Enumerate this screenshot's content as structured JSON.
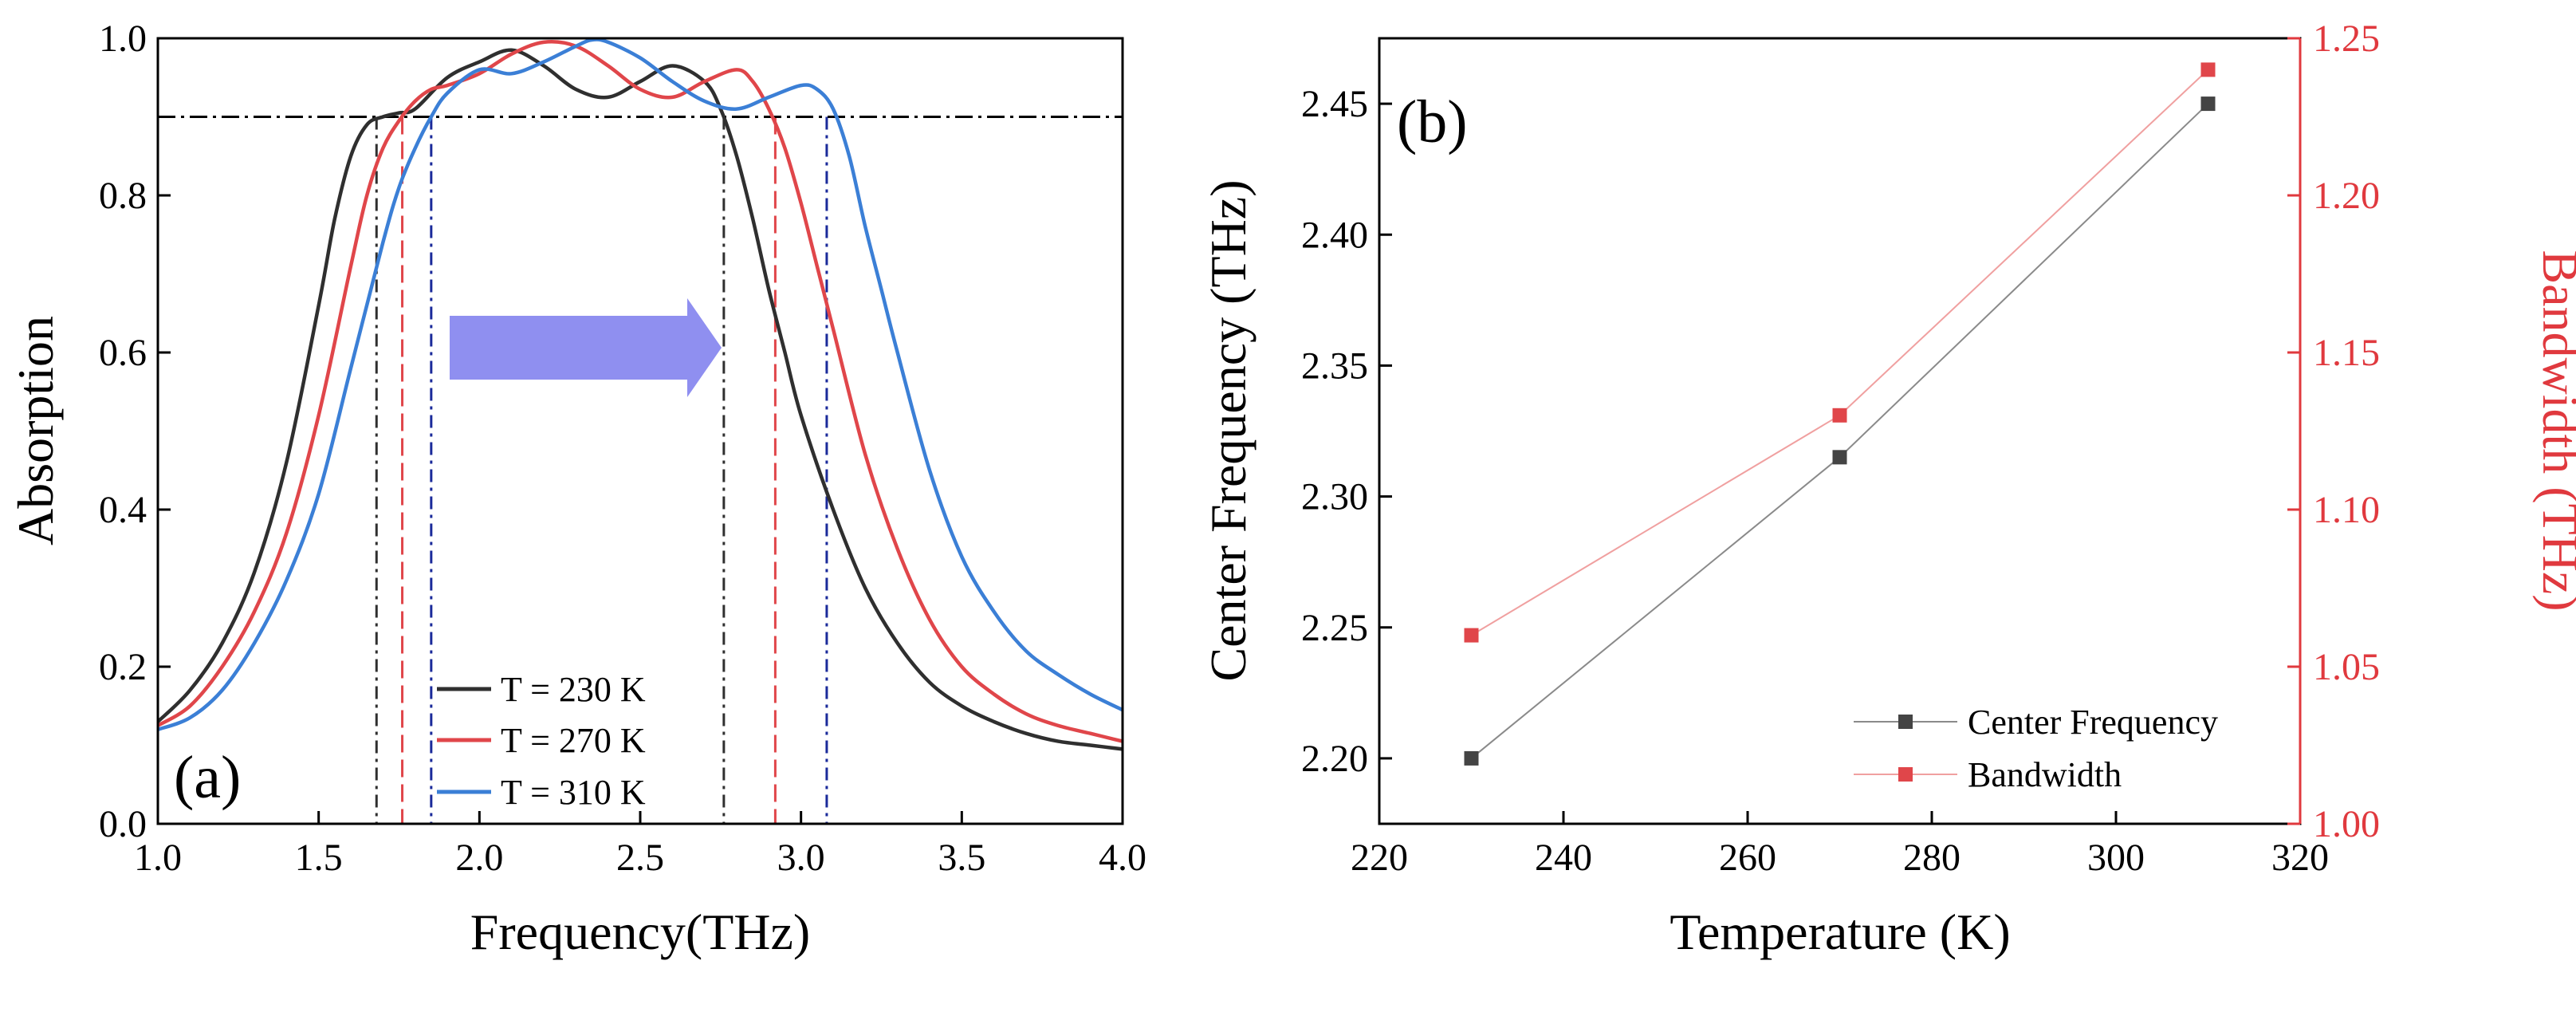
{
  "colors": {
    "black": "#2f2f2f",
    "red": "#e0464a",
    "blue": "#3b7fd6",
    "navy": "#1a2a9a",
    "arrow": "#8f8ff0",
    "bandwidth_axis": "#e0393e",
    "center_marker": "#444444",
    "grey_line": "#8a8a8a",
    "pink_line": "#f0a0a0"
  },
  "chart_data": [
    {
      "panel_label": "(a)",
      "type": "line",
      "xlabel": "Frequency(THz)",
      "ylabel": "Absorption",
      "xlim": [
        1.0,
        4.0
      ],
      "ylim": [
        0.0,
        1.0
      ],
      "xticks": [
        "1.0",
        "1.5",
        "2.0",
        "2.5",
        "3.0",
        "3.5",
        "4.0"
      ],
      "yticks": [
        "0.0",
        "0.2",
        "0.4",
        "0.6",
        "0.8",
        "1.0"
      ],
      "threshold": 0.9,
      "annotation": "arrow pointing right (band shifts to higher frequency with temperature)",
      "legend": [
        "T = 230 K",
        "T = 270 K",
        "T = 310 K"
      ],
      "series": [
        {
          "name": "T = 230 K",
          "color_key": "black",
          "band_edges": [
            1.68,
            2.76
          ],
          "x": [
            1.0,
            1.1,
            1.2,
            1.3,
            1.4,
            1.5,
            1.55,
            1.6,
            1.65,
            1.7,
            1.75,
            1.8,
            1.9,
            2.0,
            2.1,
            2.2,
            2.3,
            2.4,
            2.5,
            2.6,
            2.7,
            2.75,
            2.8,
            2.85,
            2.9,
            2.95,
            3.0,
            3.1,
            3.2,
            3.3,
            3.4,
            3.5,
            3.6,
            3.7,
            3.8,
            3.9,
            4.0
          ],
          "y": [
            0.13,
            0.17,
            0.23,
            0.32,
            0.46,
            0.66,
            0.77,
            0.85,
            0.89,
            0.9,
            0.905,
            0.91,
            0.95,
            0.97,
            0.985,
            0.965,
            0.935,
            0.925,
            0.945,
            0.965,
            0.945,
            0.91,
            0.85,
            0.77,
            0.68,
            0.6,
            0.52,
            0.4,
            0.3,
            0.23,
            0.18,
            0.15,
            0.13,
            0.115,
            0.105,
            0.1,
            0.095
          ]
        },
        {
          "name": "T = 270 K",
          "color_key": "red",
          "band_edges": [
            1.76,
            2.92
          ],
          "x": [
            1.0,
            1.1,
            1.2,
            1.3,
            1.4,
            1.5,
            1.6,
            1.65,
            1.7,
            1.75,
            1.8,
            1.85,
            1.9,
            2.0,
            2.1,
            2.2,
            2.3,
            2.4,
            2.5,
            2.6,
            2.7,
            2.8,
            2.85,
            2.9,
            2.95,
            3.0,
            3.05,
            3.1,
            3.2,
            3.3,
            3.4,
            3.5,
            3.6,
            3.7,
            3.8,
            3.9,
            4.0
          ],
          "y": [
            0.125,
            0.15,
            0.2,
            0.27,
            0.37,
            0.52,
            0.71,
            0.8,
            0.86,
            0.895,
            0.92,
            0.935,
            0.94,
            0.955,
            0.98,
            0.995,
            0.99,
            0.965,
            0.935,
            0.925,
            0.945,
            0.96,
            0.945,
            0.91,
            0.86,
            0.79,
            0.71,
            0.63,
            0.47,
            0.35,
            0.26,
            0.2,
            0.165,
            0.14,
            0.125,
            0.115,
            0.105
          ]
        },
        {
          "name": "T = 310 K",
          "color_key": "blue",
          "band_edges": [
            1.85,
            3.08
          ],
          "x": [
            1.0,
            1.1,
            1.2,
            1.3,
            1.4,
            1.5,
            1.6,
            1.7,
            1.75,
            1.8,
            1.85,
            1.9,
            2.0,
            2.1,
            2.2,
            2.3,
            2.35,
            2.4,
            2.5,
            2.6,
            2.7,
            2.8,
            2.9,
            3.0,
            3.05,
            3.1,
            3.15,
            3.2,
            3.25,
            3.3,
            3.4,
            3.5,
            3.6,
            3.7,
            3.8,
            3.9,
            4.0
          ],
          "y": [
            0.12,
            0.135,
            0.17,
            0.23,
            0.31,
            0.42,
            0.58,
            0.74,
            0.81,
            0.86,
            0.9,
            0.93,
            0.96,
            0.955,
            0.97,
            0.99,
            0.998,
            0.995,
            0.975,
            0.945,
            0.92,
            0.91,
            0.925,
            0.94,
            0.935,
            0.91,
            0.85,
            0.76,
            0.68,
            0.6,
            0.45,
            0.34,
            0.27,
            0.22,
            0.19,
            0.165,
            0.145
          ]
        }
      ]
    },
    {
      "panel_label": "(b)",
      "type": "line",
      "xlabel": "Temperature (K)",
      "ylabel": "Center Frequency (THz)",
      "y2label": "Bandwidth (THz)",
      "xlim": [
        220,
        320
      ],
      "ylim": [
        2.175,
        2.475
      ],
      "y2lim": [
        1.0,
        1.25
      ],
      "xticks": [
        "220",
        "240",
        "260",
        "280",
        "300",
        "320"
      ],
      "yticks": [
        "2.20",
        "2.25",
        "2.30",
        "2.35",
        "2.40",
        "2.45"
      ],
      "y2ticks": [
        "1.00",
        "1.05",
        "1.10",
        "1.15",
        "1.20",
        "1.25"
      ],
      "legend": [
        "Center Frequency",
        "Bandwidth"
      ],
      "x": [
        230,
        270,
        310
      ],
      "series": [
        {
          "name": "Center Frequency",
          "axis": "left",
          "color_key": "center_marker",
          "values": [
            2.2,
            2.315,
            2.45
          ]
        },
        {
          "name": "Bandwidth",
          "axis": "right",
          "color_key": "red",
          "values": [
            1.06,
            1.13,
            1.24
          ]
        }
      ]
    }
  ]
}
